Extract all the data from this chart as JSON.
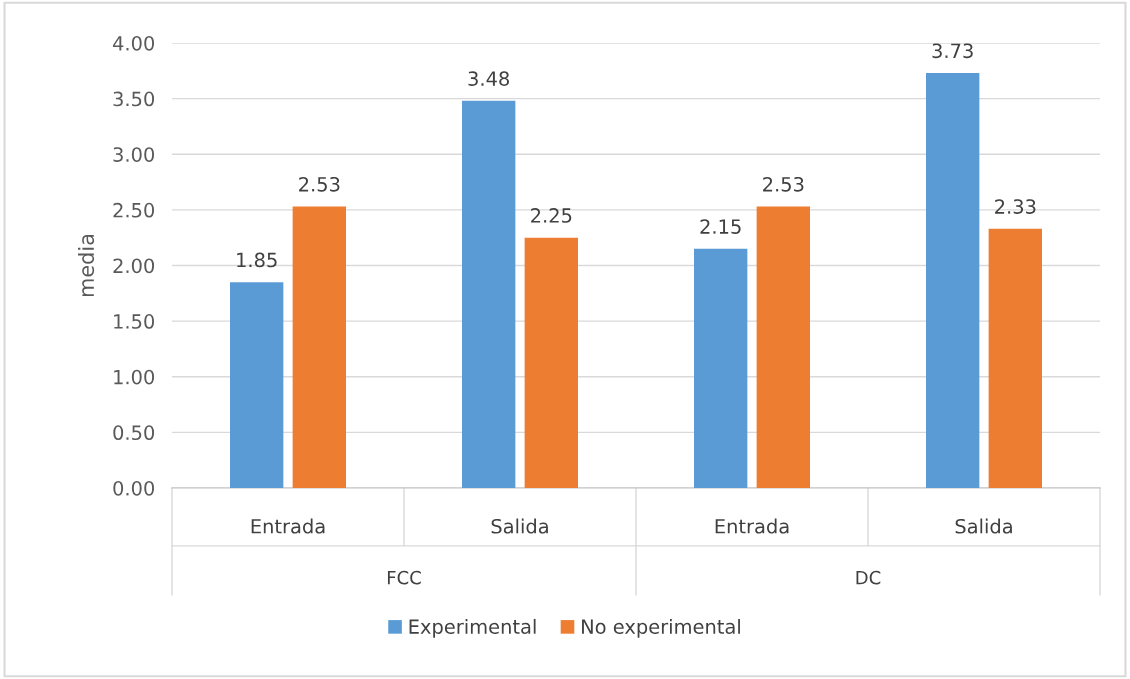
{
  "chart_data": {
    "type": "bar",
    "ylabel": "media",
    "categories": [
      "Entrada",
      "Salida",
      "Entrada",
      "Salida"
    ],
    "annotations": [
      "FCC",
      "DC"
    ],
    "series": [
      {
        "name": "Experimental",
        "color": "#5b9bd5",
        "values": [
          1.85,
          3.48,
          2.15,
          3.73
        ]
      },
      {
        "name": "No experimental",
        "color": "#ed7d31",
        "values": [
          2.53,
          2.25,
          2.53,
          2.33
        ]
      }
    ],
    "ylim": [
      0,
      4
    ],
    "yticks": [
      {
        "value": 0,
        "label": "0.00"
      },
      {
        "value": 0.5,
        "label": "0.50"
      },
      {
        "value": 1,
        "label": "1.00"
      },
      {
        "value": 1.5,
        "label": "1.50"
      },
      {
        "value": 2,
        "label": "2.00"
      },
      {
        "value": 2.5,
        "label": "2.50"
      },
      {
        "value": 3,
        "label": "3.00"
      },
      {
        "value": 3.5,
        "label": "3.50"
      },
      {
        "value": 4,
        "label": "4.00"
      }
    ],
    "grid": "y",
    "legend": "bottom",
    "data_labels": true
  }
}
